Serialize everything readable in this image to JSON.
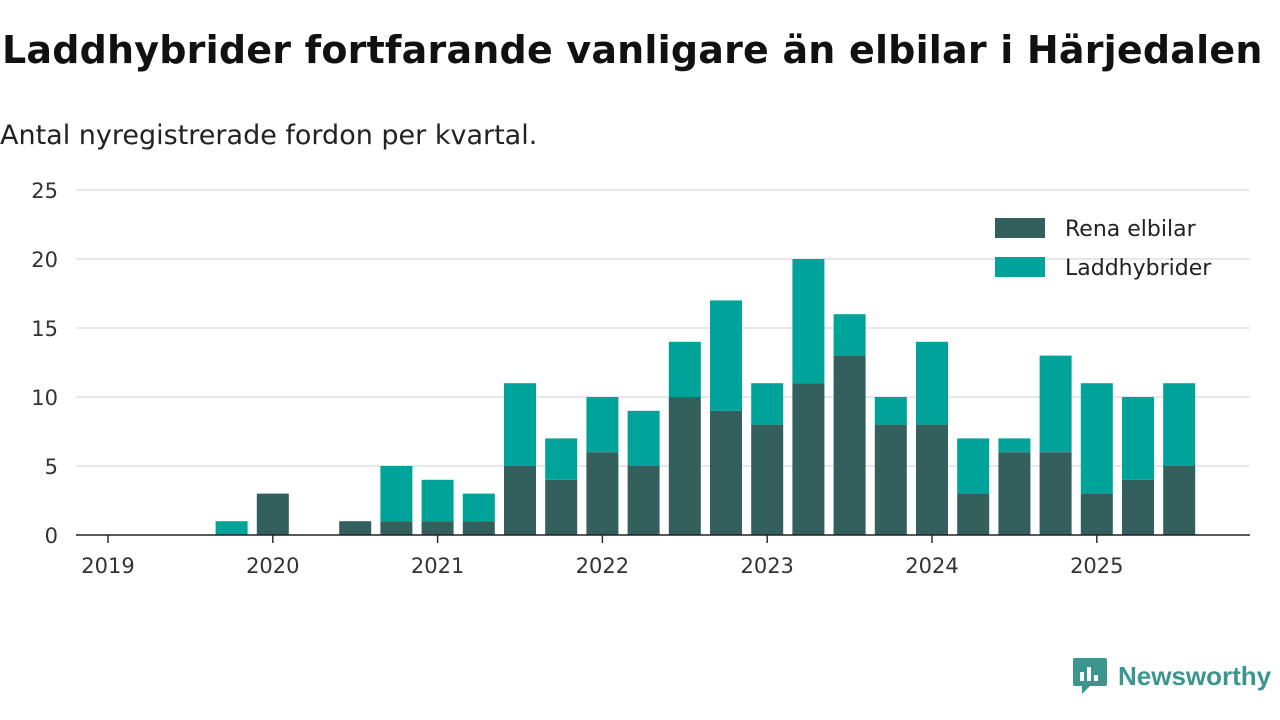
{
  "chart_data": {
    "type": "bar",
    "stacked": true,
    "title": "Laddhybrider fortfarande vanligare än elbilar i Härjedalen",
    "subtitle": "Antal nyregistrerade fordon per kvartal.",
    "xlabel": "",
    "ylabel": "",
    "ylim": [
      0,
      25
    ],
    "yticks": [
      0,
      5,
      10,
      15,
      20,
      25
    ],
    "year_ticks": [
      "2019",
      "2020",
      "2021",
      "2022",
      "2023",
      "2024",
      "2025"
    ],
    "categories": [
      "2019Q1",
      "2019Q2",
      "2019Q3",
      "2019Q4",
      "2020Q1",
      "2020Q2",
      "2020Q3",
      "2020Q4",
      "2021Q1",
      "2021Q2",
      "2021Q3",
      "2021Q4",
      "2022Q1",
      "2022Q2",
      "2022Q3",
      "2022Q4",
      "2023Q1",
      "2023Q2",
      "2023Q3",
      "2023Q4",
      "2024Q1",
      "2024Q2",
      "2024Q3",
      "2024Q4",
      "2025Q1",
      "2025Q2",
      "2025Q3"
    ],
    "series": [
      {
        "name": "Rena elbilar",
        "color": "#335f5c",
        "values": [
          0,
          0,
          0,
          0,
          3,
          0,
          1,
          1,
          1,
          1,
          5,
          4,
          6,
          5,
          10,
          9,
          8,
          11,
          13,
          8,
          8,
          3,
          6,
          6,
          3,
          4,
          5
        ]
      },
      {
        "name": "Laddhybrider",
        "color": "#00a39a",
        "values": [
          0,
          0,
          0,
          1,
          0,
          0,
          0,
          4,
          3,
          2,
          6,
          3,
          4,
          4,
          4,
          8,
          3,
          9,
          3,
          2,
          6,
          4,
          1,
          7,
          8,
          6,
          6
        ]
      }
    ],
    "legend_position": "top-right",
    "grid": true
  },
  "brand": {
    "name": "Newsworthy"
  }
}
